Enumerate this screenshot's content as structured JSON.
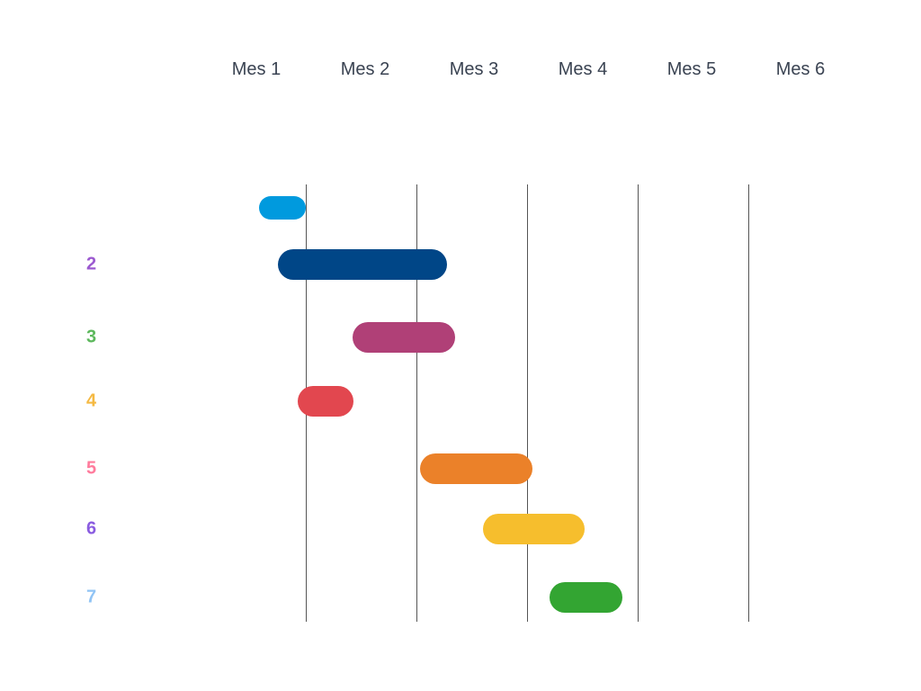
{
  "months": [
    "Mes 1",
    "Mes 2",
    "Mes 3",
    "Mes 4",
    "Mes 5",
    "Mes 6"
  ],
  "rows": [
    {
      "label": "",
      "color": "#009ADE",
      "start": 0.58,
      "end": 1.0,
      "label_color": "#9B59D0"
    },
    {
      "label": "2",
      "color": "#004687",
      "start": 0.75,
      "end": 2.28,
      "label_color": "#9B59D0"
    },
    {
      "label": "3",
      "color": "#B04077",
      "start": 1.42,
      "end": 2.35,
      "label_color": "#5CB85C"
    },
    {
      "label": "4",
      "color": "#E2474F",
      "start": 0.93,
      "end": 1.43,
      "label_color": "#F5B942"
    },
    {
      "label": "5",
      "color": "#EB8129",
      "start": 2.03,
      "end": 3.05,
      "label_color": "#FF7B9C"
    },
    {
      "label": "6",
      "color": "#F6BE2D",
      "start": 2.6,
      "end": 3.52,
      "label_color": "#8A5CE0"
    },
    {
      "label": "7",
      "color": "#33A532",
      "start": 3.2,
      "end": 3.86,
      "label_color": "#91C4F5"
    }
  ]
}
